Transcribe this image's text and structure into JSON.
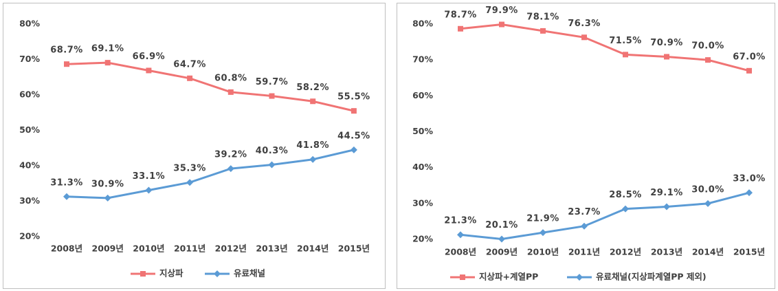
{
  "chart_data": [
    {
      "type": "line",
      "categories": [
        "2008년",
        "2009년",
        "2010년",
        "2011년",
        "2012년",
        "2013년",
        "2014년",
        "2015년"
      ],
      "series": [
        {
          "name": "지상파",
          "color": "#f07474",
          "marker": "square",
          "values": [
            68.7,
            69.1,
            66.9,
            64.7,
            60.8,
            59.7,
            58.2,
            55.5
          ],
          "value_labels": [
            "68.7%",
            "69.1%",
            "66.9%",
            "64.7%",
            "60.8%",
            "59.7%",
            "58.2%",
            "55.5%"
          ]
        },
        {
          "name": "유료채널",
          "color": "#5b9bd5",
          "marker": "diamond",
          "values": [
            31.3,
            30.9,
            33.1,
            35.3,
            39.2,
            40.3,
            41.8,
            44.5
          ],
          "value_labels": [
            "31.3%",
            "30.9%",
            "33.1%",
            "35.3%",
            "39.2%",
            "40.3%",
            "41.8%",
            "44.5%"
          ]
        }
      ],
      "ylim": [
        20,
        80
      ],
      "yticks": [
        {
          "value": 20,
          "label": "20%"
        },
        {
          "value": 30,
          "label": "30%"
        },
        {
          "value": 40,
          "label": "40%"
        },
        {
          "value": 50,
          "label": "50%"
        },
        {
          "value": 60,
          "label": "60%"
        },
        {
          "value": 70,
          "label": "70%"
        },
        {
          "value": 80,
          "label": "80%"
        }
      ],
      "legend": "bottom",
      "grid": false
    },
    {
      "type": "line",
      "categories": [
        "2008년",
        "2009년",
        "2010년",
        "2011년",
        "2012년",
        "2013년",
        "2014년",
        "2015년"
      ],
      "series": [
        {
          "name": "지상파+계열PP",
          "color": "#f07474",
          "marker": "square",
          "values": [
            78.7,
            79.9,
            78.1,
            76.3,
            71.5,
            70.9,
            70.0,
            67.0
          ],
          "value_labels": [
            "78.7%",
            "79.9%",
            "78.1%",
            "76.3%",
            "71.5%",
            "70.9%",
            "70.0%",
            "67.0%"
          ]
        },
        {
          "name": "유료채널(지상파계열PP 제외)",
          "color": "#5b9bd5",
          "marker": "diamond",
          "values": [
            21.3,
            20.1,
            21.9,
            23.7,
            28.5,
            29.1,
            30.0,
            33.0
          ],
          "value_labels": [
            "21.3%",
            "20.1%",
            "21.9%",
            "23.7%",
            "28.5%",
            "29.1%",
            "30.0%",
            "33.0%"
          ]
        }
      ],
      "ylim": [
        20,
        80
      ],
      "yticks": [
        {
          "value": 20,
          "label": "20%"
        },
        {
          "value": 30,
          "label": "30%"
        },
        {
          "value": 40,
          "label": "40%"
        },
        {
          "value": 50,
          "label": "50%"
        },
        {
          "value": 60,
          "label": "60%"
        },
        {
          "value": 70,
          "label": "70%"
        },
        {
          "value": 80,
          "label": "80%"
        }
      ],
      "legend": "bottom",
      "grid": false
    }
  ]
}
